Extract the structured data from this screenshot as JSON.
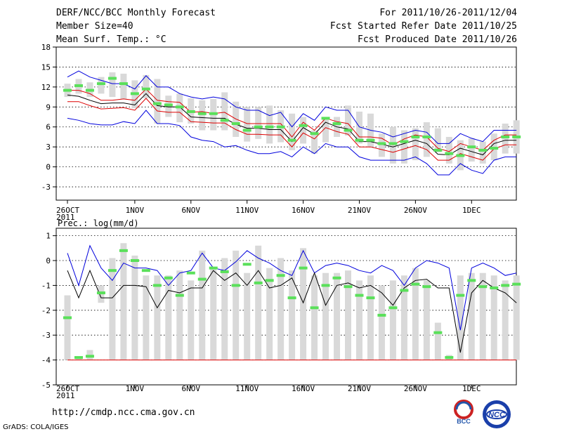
{
  "header": {
    "title": "DERF/NCC/BCC Monthly Forecast",
    "member_size": "Member Size=40",
    "variable": "Mean Surf. Temp.: °C",
    "period": "For 2011/10/26-2011/12/04",
    "started": "Fcst Started Refer Date 2011/10/25",
    "produced": "Fcst Produced Date 2011/10/26"
  },
  "footer": {
    "url": "http://cmdp.ncc.cma.gov.cn",
    "grads": "GrADS: COLA/IGES",
    "logo_bcc_text": "BCC",
    "logo_ncc_text": "NCC"
  },
  "colors": {
    "box": "#d9d9d9",
    "median": "#5ae05a",
    "envelope": "#0000dd",
    "mean": "#000000",
    "band": "#dd0000"
  },
  "chart_data": [
    {
      "type": "box",
      "title": "Mean Surf. Temp.: °C",
      "ylim": [
        -5,
        18
      ],
      "yticks": [
        -3,
        0,
        3,
        6,
        9,
        12,
        15,
        18
      ],
      "xticks": [
        {
          "day": 0,
          "label": "26OCT",
          "sub": "2011"
        },
        {
          "day": 6,
          "label": "1NOV"
        },
        {
          "day": 11,
          "label": "6NOV"
        },
        {
          "day": 16,
          "label": "11NOV"
        },
        {
          "day": 21,
          "label": "16NOV"
        },
        {
          "day": 26,
          "label": "21NOV"
        },
        {
          "day": 31,
          "label": "26NOV"
        },
        {
          "day": 36,
          "label": "1DEC"
        }
      ],
      "series": {
        "box_top": [
          12.5,
          13.2,
          12.7,
          13.5,
          14.2,
          14.0,
          13.0,
          13.8,
          13.2,
          10.7,
          11.0,
          10.3,
          10.0,
          10.2,
          11.2,
          9.8,
          9.0,
          9.0,
          9.2,
          8.5,
          8.0,
          7.5,
          5.5,
          7.5,
          7.5,
          9.2,
          8.3,
          8.0,
          5.0,
          6.0,
          5.5,
          5.8,
          6.7,
          5.8,
          4.5,
          4.0,
          4.3,
          3.8,
          5.0,
          6.5,
          7.0
        ],
        "box_bottom": [
          10.5,
          11.0,
          10.5,
          11.0,
          10.5,
          10.2,
          8.8,
          10.3,
          6.5,
          7.5,
          6.7,
          6.5,
          5.5,
          5.5,
          5.5,
          4.5,
          3.8,
          4.2,
          3.5,
          3.7,
          2.5,
          3.5,
          2.0,
          3.7,
          4.5,
          4.7,
          3.5,
          3.0,
          1.5,
          0.5,
          0.5,
          1.0,
          1.5,
          2.2,
          0.5,
          -0.5,
          0.8,
          0.5,
          1.0,
          2.0,
          2.0
        ],
        "median": [
          11.5,
          12.2,
          11.5,
          12.5,
          13.3,
          12.5,
          11.0,
          11.7,
          9.5,
          9.3,
          9.0,
          8.3,
          8.0,
          8.0,
          7.0,
          6.5,
          5.5,
          6.0,
          6.0,
          6.0,
          4.0,
          6.2,
          5.0,
          7.3,
          6.5,
          5.5,
          4.0,
          4.0,
          3.5,
          3.5,
          3.8,
          4.5,
          4.5,
          2.5,
          2.0,
          1.7,
          3.0,
          2.5,
          2.8,
          4.5,
          4.5
        ],
        "upper": [
          13.5,
          14.4,
          13.5,
          13.0,
          12.5,
          12.5,
          11.7,
          13.7,
          12.0,
          12.0,
          11.0,
          10.5,
          10.2,
          10.5,
          10.2,
          9.0,
          8.5,
          8.5,
          7.7,
          8.2,
          6.0,
          8.0,
          7.0,
          9.0,
          8.5,
          8.5,
          6.0,
          5.5,
          5.2,
          4.5,
          5.0,
          5.5,
          5.2,
          3.5,
          3.5,
          5.0,
          4.3,
          3.8,
          5.5,
          5.5,
          5.5
        ],
        "band_top": [
          11.5,
          11.5,
          11.0,
          10.0,
          10.0,
          10.2,
          10.0,
          11.7,
          10.0,
          9.8,
          9.7,
          8.2,
          8.3,
          8.0,
          8.2,
          7.2,
          6.5,
          6.5,
          6.5,
          6.5,
          4.5,
          6.7,
          5.5,
          7.3,
          6.8,
          6.5,
          4.5,
          4.5,
          4.3,
          3.3,
          4.2,
          4.8,
          4.5,
          2.8,
          2.3,
          3.5,
          3.0,
          2.5,
          4.0,
          4.8,
          4.8
        ],
        "mean": [
          10.8,
          10.6,
          10.0,
          9.5,
          9.6,
          9.6,
          9.3,
          11.0,
          9.2,
          9.0,
          9.0,
          7.5,
          7.4,
          7.3,
          7.3,
          6.4,
          5.8,
          5.8,
          5.6,
          5.6,
          3.8,
          5.9,
          4.9,
          6.7,
          6.0,
          5.7,
          3.8,
          3.8,
          3.4,
          3.0,
          3.5,
          4.0,
          3.5,
          1.9,
          1.8,
          2.8,
          2.3,
          1.8,
          3.5,
          4.0,
          4.0
        ],
        "band_bottom": [
          9.8,
          9.8,
          9.2,
          8.7,
          8.8,
          8.9,
          8.5,
          10.3,
          8.4,
          8.2,
          8.2,
          6.8,
          6.7,
          6.6,
          6.6,
          5.6,
          4.9,
          4.9,
          4.8,
          4.8,
          3.0,
          5.1,
          4.2,
          5.9,
          5.3,
          4.9,
          3.0,
          3.0,
          2.6,
          2.2,
          2.7,
          3.2,
          2.6,
          1.0,
          1.0,
          2.0,
          1.5,
          1.0,
          2.7,
          3.3,
          3.3
        ],
        "lower": [
          7.3,
          7.0,
          6.5,
          6.3,
          6.3,
          6.8,
          6.5,
          8.5,
          6.5,
          6.5,
          6.2,
          4.5,
          4.0,
          3.8,
          3.0,
          3.2,
          2.5,
          2.0,
          2.0,
          2.3,
          1.5,
          3.0,
          2.0,
          3.5,
          3.0,
          3.0,
          1.5,
          1.0,
          1.0,
          1.0,
          1.0,
          1.5,
          0.5,
          -1.2,
          -1.2,
          0.5,
          -0.5,
          -1.0,
          1.0,
          1.5,
          1.5
        ]
      }
    },
    {
      "type": "box",
      "title": "Prec.: log(mm/d)",
      "ylim": [
        -5,
        1.3
      ],
      "yticks": [
        -5,
        -4,
        -3,
        -2,
        -1,
        0,
        1
      ],
      "xticks": [
        {
          "day": 0,
          "label": "26OCT",
          "sub": "2011"
        },
        {
          "day": 6,
          "label": "1NOV"
        },
        {
          "day": 11,
          "label": "6NOV"
        },
        {
          "day": 16,
          "label": "11NOV"
        },
        {
          "day": 21,
          "label": "16NOV"
        },
        {
          "day": 26,
          "label": "21NOV"
        },
        {
          "day": 31,
          "label": "26NOV"
        },
        {
          "day": 36,
          "label": "1DEC"
        }
      ],
      "baseline": -4,
      "series": {
        "box_top": [
          -1.4,
          -3.95,
          -3.6,
          -1.0,
          0.1,
          0.7,
          0.2,
          -0.6,
          -0.6,
          -0.6,
          -0.4,
          -0.8,
          0.4,
          -0.3,
          0.1,
          0.4,
          -0.5,
          0.6,
          -0.3,
          0.1,
          -0.4,
          0.5,
          -0.6,
          -0.5,
          -0.5,
          -0.4,
          -0.8,
          -0.6,
          -1.0,
          -0.8,
          -0.6,
          -0.3,
          -0.8,
          -2.5,
          -3.8,
          -0.6,
          -0.5,
          -0.5,
          -0.6,
          -0.8,
          -0.6
        ],
        "box_bottom": [
          -4.0,
          -4.0,
          -4.0,
          -1.7,
          -4.0,
          -4.0,
          -4.0,
          -4.0,
          -4.0,
          -4.0,
          -4.0,
          -4.0,
          -4.0,
          -4.0,
          -4.0,
          -4.0,
          -4.0,
          -4.0,
          -4.0,
          -4.0,
          -4.0,
          -4.0,
          -4.0,
          -4.0,
          -4.0,
          -4.0,
          -4.0,
          -4.0,
          -4.0,
          -4.0,
          -4.0,
          -4.0,
          -4.0,
          -4.0,
          -4.0,
          -4.0,
          -4.0,
          -4.0,
          -4.0,
          -4.0,
          -4.0
        ],
        "median": [
          -2.3,
          -3.9,
          -3.85,
          -1.3,
          -0.4,
          0.4,
          0.0,
          -0.4,
          -1.0,
          -0.7,
          -1.4,
          -0.5,
          -0.75,
          -0.3,
          -0.45,
          -1.0,
          -0.15,
          -0.9,
          -0.8,
          -0.6,
          -1.5,
          -0.3,
          -1.9,
          -1.0,
          -0.7,
          -1.05,
          -1.4,
          -1.5,
          -2.2,
          -1.9,
          -1.2,
          -0.95,
          -1.05,
          -2.9,
          -3.9,
          -1.4,
          -0.8,
          -1.05,
          -1.1,
          -1.0,
          -0.95
        ],
        "upper": [
          0.3,
          -1.0,
          0.6,
          -0.3,
          -0.8,
          -0.1,
          -0.3,
          -0.3,
          -0.4,
          -1.0,
          -0.5,
          -0.4,
          0.3,
          -0.3,
          -0.4,
          -0.05,
          0.4,
          0.1,
          -0.1,
          -0.4,
          -0.6,
          0.4,
          -0.5,
          -0.2,
          -0.1,
          -0.2,
          -0.4,
          -0.5,
          -0.2,
          -0.4,
          -1.0,
          -0.3,
          0.0,
          -0.1,
          -0.3,
          -2.8,
          -0.3,
          -0.1,
          -0.3,
          -0.6,
          -0.5
        ],
        "mean": [
          -0.4,
          -1.5,
          -0.4,
          -1.5,
          -1.5,
          -1.0,
          -1.0,
          -1.05,
          -1.9,
          -1.2,
          -1.3,
          -1.1,
          -1.1,
          -0.4,
          -0.8,
          -0.5,
          -1.0,
          -0.4,
          -1.1,
          -1.0,
          -0.7,
          -1.7,
          -0.5,
          -1.8,
          -1.0,
          -0.9,
          -1.1,
          -1.0,
          -1.3,
          -1.8,
          -1.1,
          -0.8,
          -0.75,
          -1.1,
          -1.1,
          -3.7,
          -1.3,
          -0.8,
          -1.1,
          -1.3,
          -1.7
        ],
        "floor": [
          -4.0,
          -4.0,
          -4.0,
          -4.0,
          -4.0,
          -4.0,
          -4.0,
          -4.0,
          -4.0,
          -4.0,
          -4.0,
          -4.0,
          -4.0,
          -4.0,
          -4.0,
          -4.0,
          -4.0,
          -4.0,
          -4.0,
          -4.0,
          -4.0,
          -4.0,
          -4.0,
          -4.0,
          -4.0,
          -4.0,
          -4.0,
          -4.0,
          -4.0,
          -4.0,
          -4.0,
          -4.0,
          -4.0,
          -4.0,
          -4.0,
          -4.0,
          -4.0,
          -4.0,
          -4.0,
          -4.0,
          -4.0
        ]
      }
    }
  ]
}
